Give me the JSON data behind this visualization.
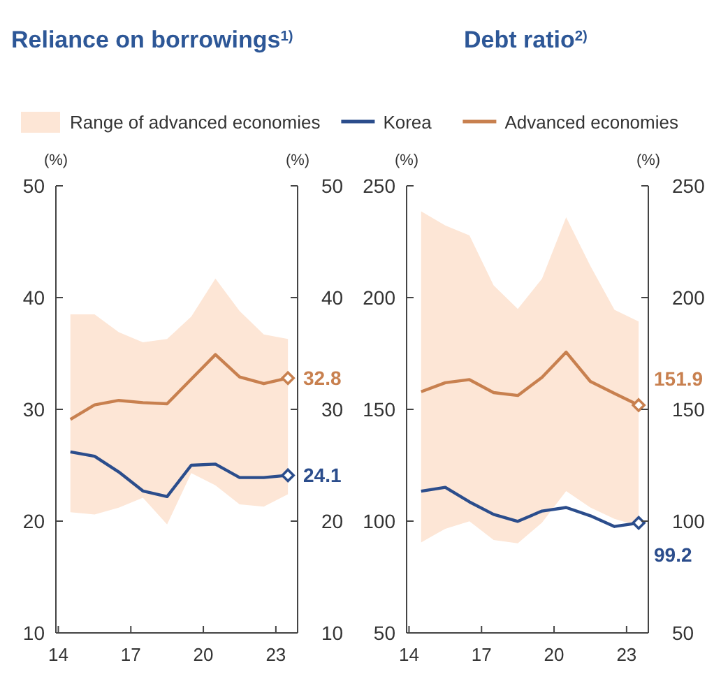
{
  "chart_data": [
    {
      "type": "line",
      "title": "Reliance on borrowings$^{1)}$",
      "ylabel": "(%)",
      "y2label": "(%)",
      "x": [
        14.5,
        15.5,
        16.5,
        17.5,
        18.5,
        19.5,
        20.5,
        21.5,
        22.5,
        23.5
      ],
      "xlim": [
        13.9,
        23.9
      ],
      "xticks": [
        14,
        17,
        20,
        23
      ],
      "ylim": [
        10,
        50
      ],
      "yticks": [
        10,
        20,
        30,
        40,
        50
      ],
      "y2lim": [
        10,
        50
      ],
      "y2ticks": [
        10,
        20,
        30,
        40,
        50
      ],
      "legend": "top",
      "series": [
        {
          "name": "Range of advanced economies",
          "type": "area",
          "color": "#fde6d6",
          "values": [
            null,
            null,
            null,
            null,
            null,
            null,
            null,
            null,
            null,
            null
          ],
          "lower": [
            20.8,
            20.6,
            21.2,
            22.1,
            19.7,
            24.3,
            23.2,
            21.5,
            21.3,
            22.4
          ],
          "upper": [
            38.5,
            38.5,
            36.9,
            36.0,
            36.3,
            38.3,
            41.7,
            38.8,
            36.7,
            36.3
          ]
        },
        {
          "name": "Korea",
          "color": "#2b4d8c",
          "values": [
            26.2,
            25.8,
            24.4,
            22.7,
            22.2,
            25.0,
            25.1,
            23.9,
            23.9,
            24.1
          ],
          "value_labels": [
            null,
            null,
            null,
            null,
            null,
            null,
            null,
            null,
            null,
            "24.1"
          ]
        },
        {
          "name": "Advanced economies",
          "color": "#c8804f",
          "values": [
            29.1,
            30.4,
            30.8,
            30.6,
            30.5,
            32.7,
            34.9,
            32.9,
            32.3,
            32.8
          ],
          "value_labels": [
            null,
            null,
            null,
            null,
            null,
            null,
            null,
            null,
            null,
            "32.8"
          ]
        }
      ]
    },
    {
      "type": "line",
      "title": "Debt ratio$^{2)}$",
      "ylabel": "(%)",
      "y2label": "(%)",
      "x": [
        14.5,
        15.5,
        16.5,
        17.5,
        18.5,
        19.5,
        20.5,
        21.5,
        22.5,
        23.5
      ],
      "xlim": [
        13.9,
        23.9
      ],
      "xticks": [
        14,
        17,
        20,
        23
      ],
      "ylim": [
        50,
        250
      ],
      "yticks": [
        50,
        100,
        150,
        200,
        250
      ],
      "y2lim": [
        50,
        250
      ],
      "y2ticks": [
        50,
        100,
        150,
        200,
        250
      ],
      "series": [
        {
          "type": "area",
          "color": "#fde6d6",
          "values": [
            null,
            null,
            null,
            null,
            null,
            null,
            null,
            null,
            null,
            null
          ],
          "lower": [
            90.5,
            96.6,
            99.9,
            91.6,
            90.1,
            99.3,
            113.4,
            106.1,
            101.0,
            97.8
          ],
          "upper": [
            238.6,
            232.3,
            227.8,
            205.5,
            194.9,
            208.4,
            235.9,
            214.2,
            194.5,
            189.3
          ]
        },
        {
          "color": "#2b4d8c",
          "values": [
            113.4,
            115.1,
            108.6,
            103.0,
            99.9,
            104.5,
            106.1,
            102.4,
            97.6,
            99.2
          ],
          "value_labels": [
            null,
            null,
            null,
            null,
            null,
            null,
            null,
            null,
            null,
            "99.2"
          ]
        },
        {
          "color": "#c8804f",
          "values": [
            157.9,
            161.9,
            163.3,
            157.5,
            156.2,
            164.3,
            175.6,
            162.5,
            157.1,
            151.9
          ],
          "value_labels": [
            null,
            null,
            null,
            null,
            null,
            null,
            null,
            null,
            null,
            "151.9"
          ]
        }
      ]
    }
  ]
}
